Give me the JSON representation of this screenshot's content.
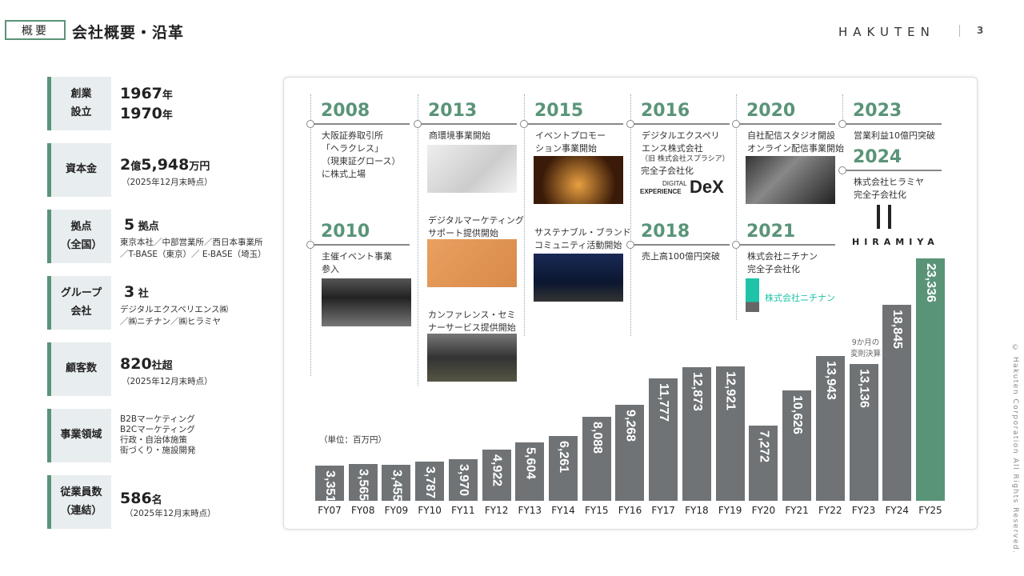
{
  "header": {
    "tag": "概要",
    "title": "会社概要・沿革",
    "logo": "HAKUTEN",
    "page": "3"
  },
  "copyright": "© Hakuten Corporation All Rights Reserved.",
  "overview": [
    {
      "label": "創業\n設立",
      "values": [
        {
          "num": "1967",
          "unit": "年"
        },
        {
          "num": "1970",
          "unit": "年"
        }
      ]
    },
    {
      "label": "資本金",
      "num": "2",
      "unit1": "億",
      "num2": "5,948",
      "unit": "万円",
      "note": "（2025年12月末時点）"
    },
    {
      "label": "拠点\n（全国）",
      "num": "5",
      "unit": " 拠点",
      "note": "東京本社／中部営業所／西日本事業所\n／T-BASE（東京）／ E-BASE（埼玉）"
    },
    {
      "label": "グループ\n会社",
      "num": "3",
      "unit": " 社",
      "note": "デジタルエクスペリエンス㈱\n／㈱ニチナン／㈱ヒラミヤ"
    },
    {
      "label": "顧客数",
      "num": "820",
      "unit": "社超",
      "note": "（2025年12月末時点）"
    },
    {
      "label": "事業領域",
      "note": "B2Bマーケティング\nB2Cマーケティング\n行政・自治体施策\n街づくり・施設開発"
    },
    {
      "label": "従業員数\n（連結）",
      "num": "586",
      "unit": "名",
      "note": "（2025年12月末時点）"
    }
  ],
  "timeline": [
    {
      "year": "2008",
      "text": "大阪証券取引所\n「ヘラクレス」\n（現東証グロース）\nに株式上場"
    },
    {
      "year": "2010",
      "text": "主催イベント事業\n参入"
    },
    {
      "year": "2013",
      "text": "商環境事業開始",
      "text2": "デジタルマーケティング\nサポート提供開始",
      "text3": "カンファレンス・セミ\nナーサービス提供開始"
    },
    {
      "year": "2015",
      "text": "イベントプロモー\nション事業開始",
      "text2": "サステナブル・ブランド\nコミュニティ活動開始"
    },
    {
      "year": "2016",
      "text": "デジタルエクスペリ\nエンス株式会社",
      "sub": "（旧 株式会社スプラシア）",
      "text2": "完全子会社化",
      "logo_small": "DIGITAL",
      "logo_mid": "EXPERIENCE",
      "logo_big": "DeX"
    },
    {
      "year": "2018",
      "text": "売上高100億円突破"
    },
    {
      "year": "2020",
      "text": "自社配信スタジオ開設\nオンライン配信事業開始"
    },
    {
      "year": "2021",
      "text": "株式会社ニチナン\n完全子会社化",
      "logo": "株式会社ニチナン"
    },
    {
      "year": "2023",
      "text": "営業利益10億円突破"
    },
    {
      "year": "2024",
      "text": "株式会社ヒラミヤ\n完全子会社化",
      "logo": "HIRAMIYA"
    }
  ],
  "chart_data": {
    "type": "bar",
    "unit_label": "（単位：百万円）",
    "categories": [
      "FY07",
      "FY08",
      "FY09",
      "FY10",
      "FY11",
      "FY12",
      "FY13",
      "FY14",
      "FY15",
      "FY16",
      "FY17",
      "FY18",
      "FY19",
      "FY20",
      "FY21",
      "FY22",
      "FY23",
      "FY24",
      "FY25"
    ],
    "values": [
      3351,
      3565,
      3455,
      3787,
      3970,
      4922,
      5604,
      6261,
      8088,
      9268,
      11777,
      12873,
      12921,
      7272,
      10626,
      13943,
      13136,
      18845,
      23336
    ],
    "labels": [
      "3,351",
      "3,565",
      "3,455",
      "3,787",
      "3,970",
      "4,922",
      "5,604",
      "6,261",
      "8,088",
      "9,268",
      "11,777",
      "12,873",
      "12,921",
      "7,272",
      "10,626",
      "13,943",
      "13,136",
      "18,845",
      "23,336"
    ],
    "annotation": {
      "category": "FY23",
      "text": "9か月の\n変則決算"
    },
    "highlight": "FY25",
    "colors": {
      "bar": "#6f7375",
      "highlight": "#5a9478"
    }
  }
}
